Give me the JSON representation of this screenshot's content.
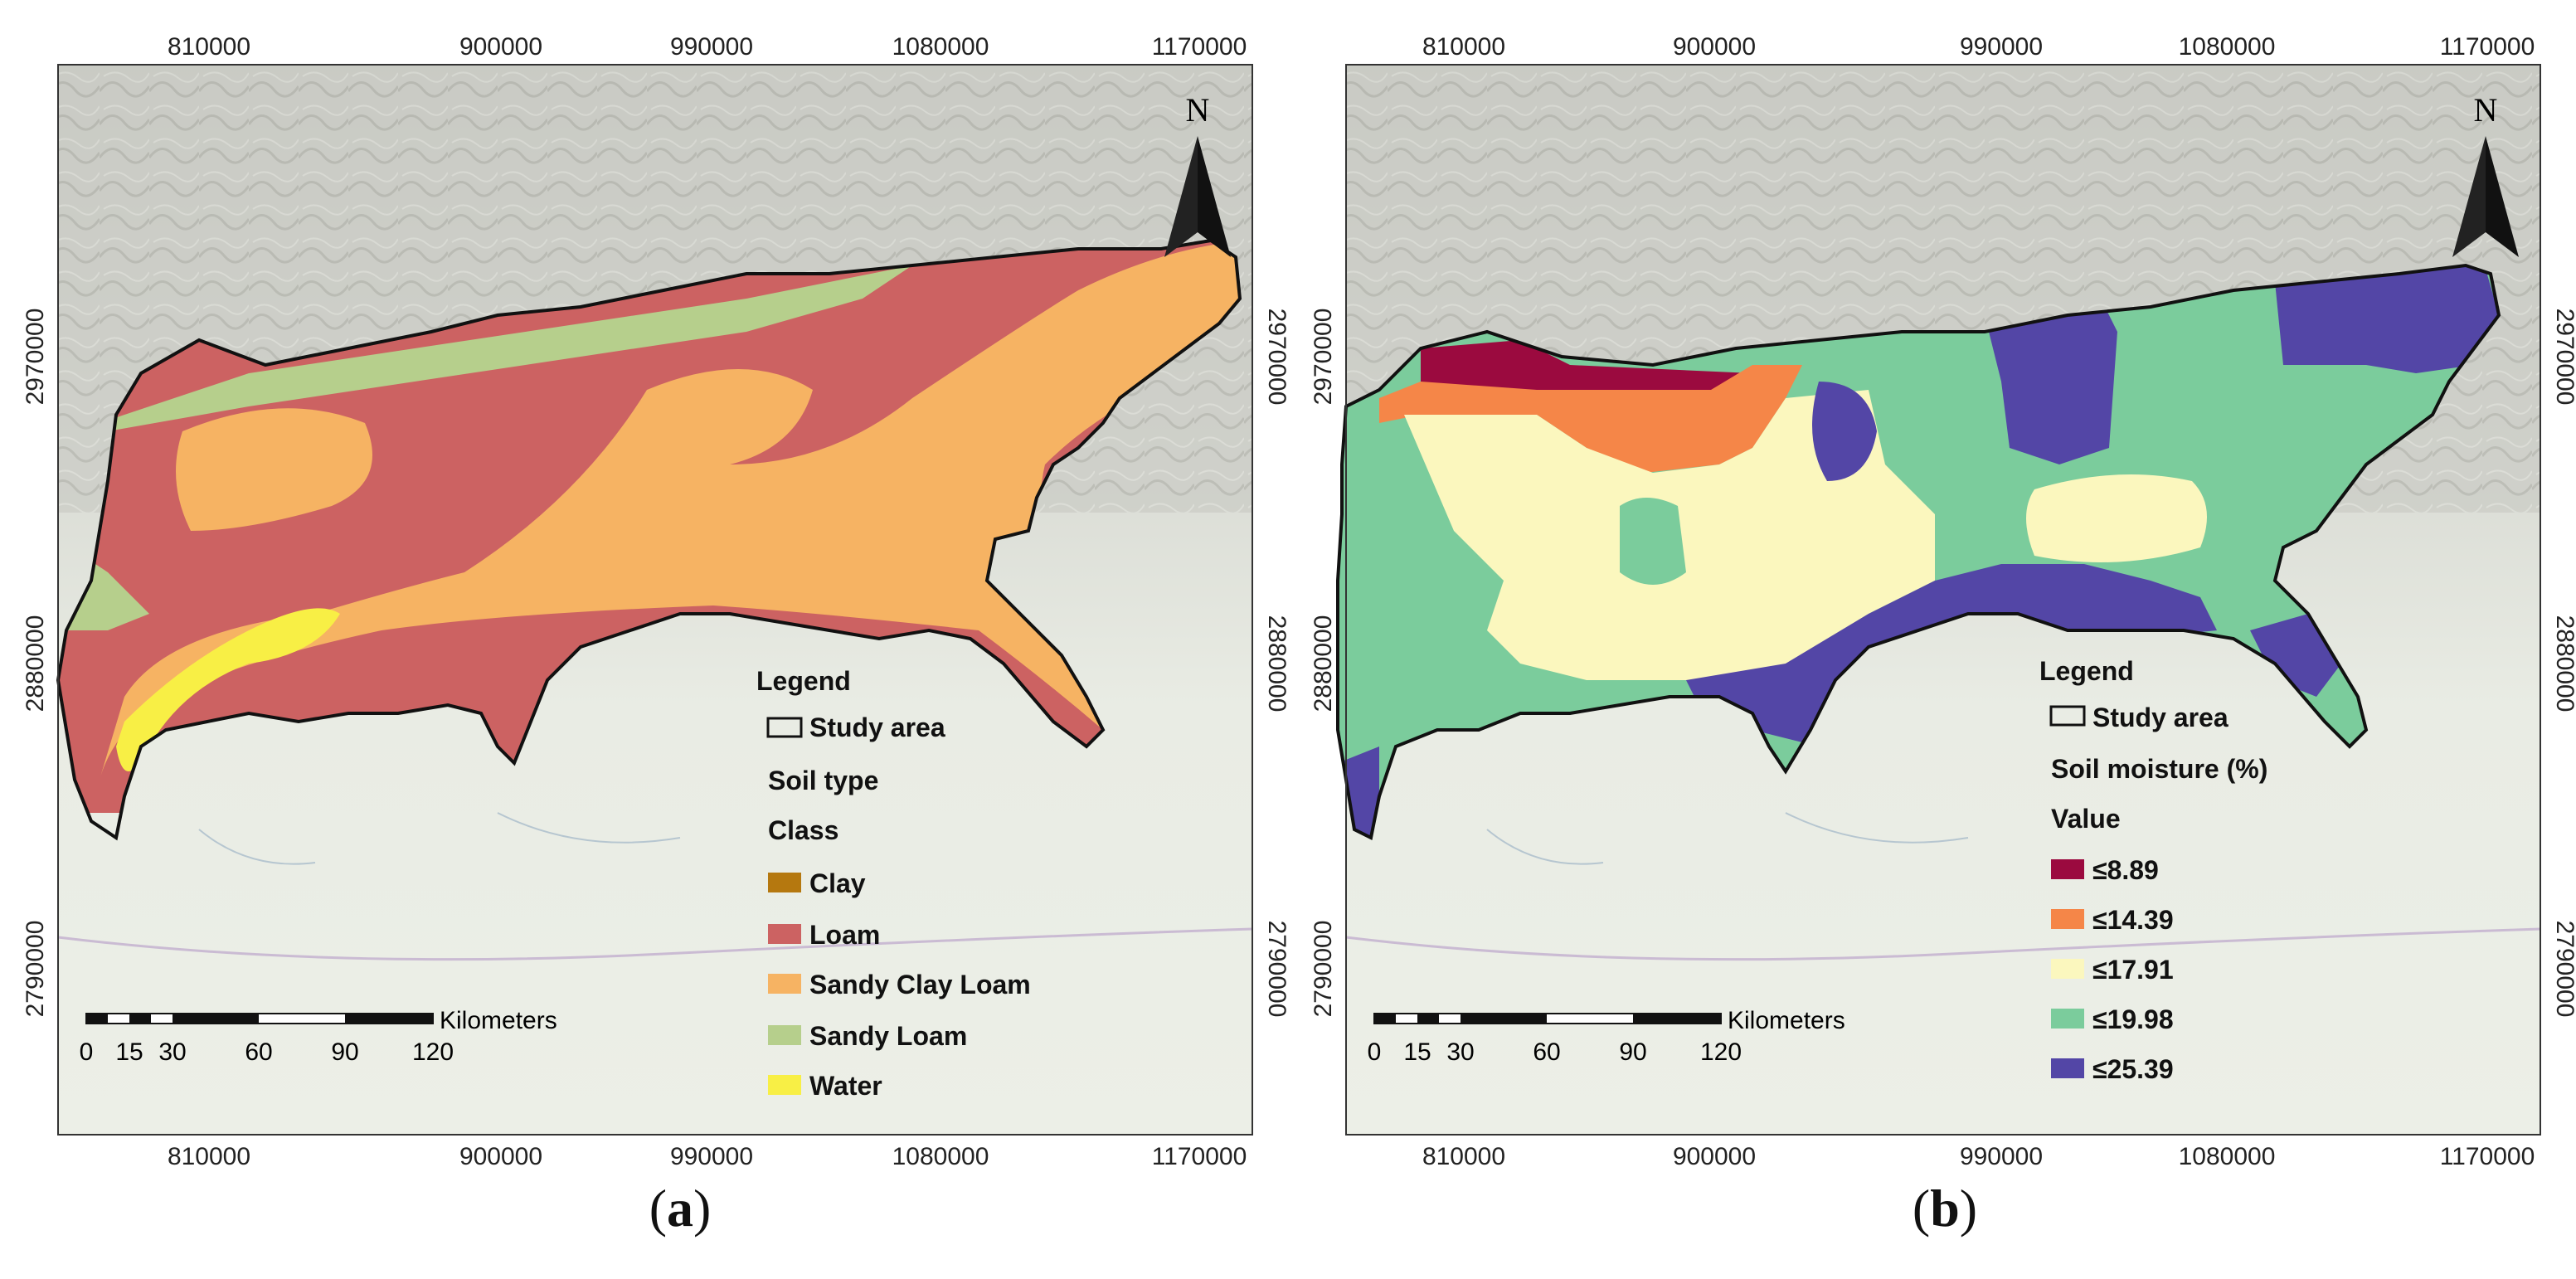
{
  "panels": [
    {
      "id": "a",
      "caption_letter": "a",
      "axes": {
        "x_ticks": [
          "810000",
          "900000",
          "990000",
          "1080000",
          "1170000"
        ],
        "y_ticks": [
          "2970000",
          "2880000",
          "2790000"
        ]
      },
      "north_label": "N",
      "scale_bar": {
        "unit": "Kilometers",
        "ticks": [
          "0",
          "15",
          "30",
          "60",
          "90",
          "120"
        ]
      },
      "legend": {
        "title": "Legend",
        "study_area_label": "Study area",
        "layer_title": "Soil type",
        "field_title": "Class",
        "classes": [
          {
            "label": "Clay",
            "color": "#b5780f"
          },
          {
            "label": "Loam",
            "color": "#cc6262"
          },
          {
            "label": "Sandy Clay Loam",
            "color": "#f6b363"
          },
          {
            "label": "Sandy Loam",
            "color": "#b6cf8c"
          },
          {
            "label": "Water",
            "color": "#f8ef45"
          }
        ]
      }
    },
    {
      "id": "b",
      "caption_letter": "b",
      "axes": {
        "x_ticks": [
          "810000",
          "900000",
          "990000",
          "1080000",
          "1170000"
        ],
        "y_ticks": [
          "2970000",
          "2880000",
          "2790000"
        ]
      },
      "north_label": "N",
      "scale_bar": {
        "unit": "Kilometers",
        "ticks": [
          "0",
          "15",
          "30",
          "60",
          "90",
          "120"
        ]
      },
      "legend": {
        "title": "Legend",
        "study_area_label": "Study area",
        "layer_title": "Soil moisture (%)",
        "field_title": "Value",
        "classes": [
          {
            "label": "≤8.89",
            "color": "#9b0a3f"
          },
          {
            "label": "≤14.39",
            "color": "#f58648"
          },
          {
            "label": "≤17.91",
            "color": "#fbf7be"
          },
          {
            "label": "≤19.98",
            "color": "#7bcc9c"
          },
          {
            "label": "≤25.39",
            "color": "#5346a6"
          }
        ]
      }
    }
  ],
  "caption_parens": {
    "open": "(",
    "close": ")"
  }
}
